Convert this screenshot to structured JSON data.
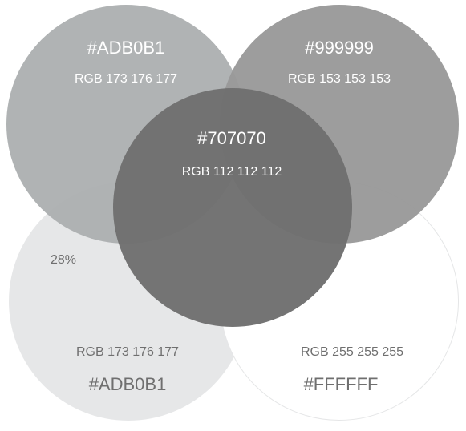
{
  "colors": {
    "tl": "#adb0b1",
    "tr": "#999999",
    "center": "#707070"
  },
  "swatches": {
    "top_left": {
      "hex": "#ADB0B1",
      "rgb": "RGB 173 176 177"
    },
    "top_right": {
      "hex": "#999999",
      "rgb": "RGB 153 153 153"
    },
    "center": {
      "hex": "#707070",
      "rgb": "RGB 112 112 112"
    },
    "bottom_left": {
      "hex": "#ADB0B1",
      "rgb": "RGB 173 176 177",
      "tint": "28%"
    },
    "bottom_right": {
      "hex": "#FFFFFF",
      "rgb": "RGB 255 255 255"
    }
  }
}
